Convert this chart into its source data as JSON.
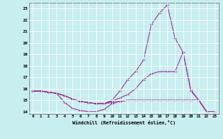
{
  "xlabel": "Windchill (Refroidissement éolien,°C)",
  "bg_color": "#c8eef0",
  "line_color": "#993399",
  "grid_color": "#aadddd",
  "xlim_min": -0.5,
  "xlim_max": 23.5,
  "ylim_min": 13.8,
  "ylim_max": 23.5,
  "yticks": [
    14,
    15,
    16,
    17,
    18,
    19,
    20,
    21,
    22,
    23
  ],
  "xticks": [
    0,
    1,
    2,
    3,
    4,
    5,
    6,
    7,
    8,
    9,
    10,
    11,
    12,
    13,
    14,
    15,
    16,
    17,
    18,
    19,
    20,
    21,
    22,
    23
  ],
  "series": [
    [
      15.8,
      15.8,
      15.7,
      15.6,
      15.4,
      15.1,
      14.9,
      14.8,
      14.7,
      14.7,
      14.8,
      14.9,
      15.0,
      15.0,
      15.0,
      15.0,
      15.0,
      15.0,
      15.0,
      15.0,
      15.0,
      15.0,
      14.0,
      14.0
    ],
    [
      15.8,
      15.8,
      15.7,
      15.6,
      14.8,
      14.3,
      14.1,
      14.0,
      14.0,
      14.2,
      14.7,
      14.9,
      15.0,
      15.0,
      15.0,
      15.0,
      15.0,
      15.0,
      15.0,
      15.0,
      15.0,
      15.0,
      14.0,
      14.0
    ],
    [
      15.8,
      15.8,
      15.7,
      15.6,
      15.4,
      15.1,
      14.9,
      14.8,
      14.7,
      14.7,
      14.9,
      15.2,
      15.5,
      16.0,
      16.8,
      17.3,
      17.5,
      17.5,
      17.5,
      19.2,
      15.8,
      15.0,
      14.0,
      14.0
    ],
    [
      15.8,
      15.8,
      15.7,
      15.6,
      15.4,
      15.1,
      14.9,
      14.8,
      14.7,
      14.7,
      15.0,
      15.8,
      16.8,
      17.5,
      18.5,
      21.6,
      22.6,
      23.3,
      20.4,
      19.2,
      15.9,
      15.0,
      14.0,
      14.0
    ]
  ]
}
